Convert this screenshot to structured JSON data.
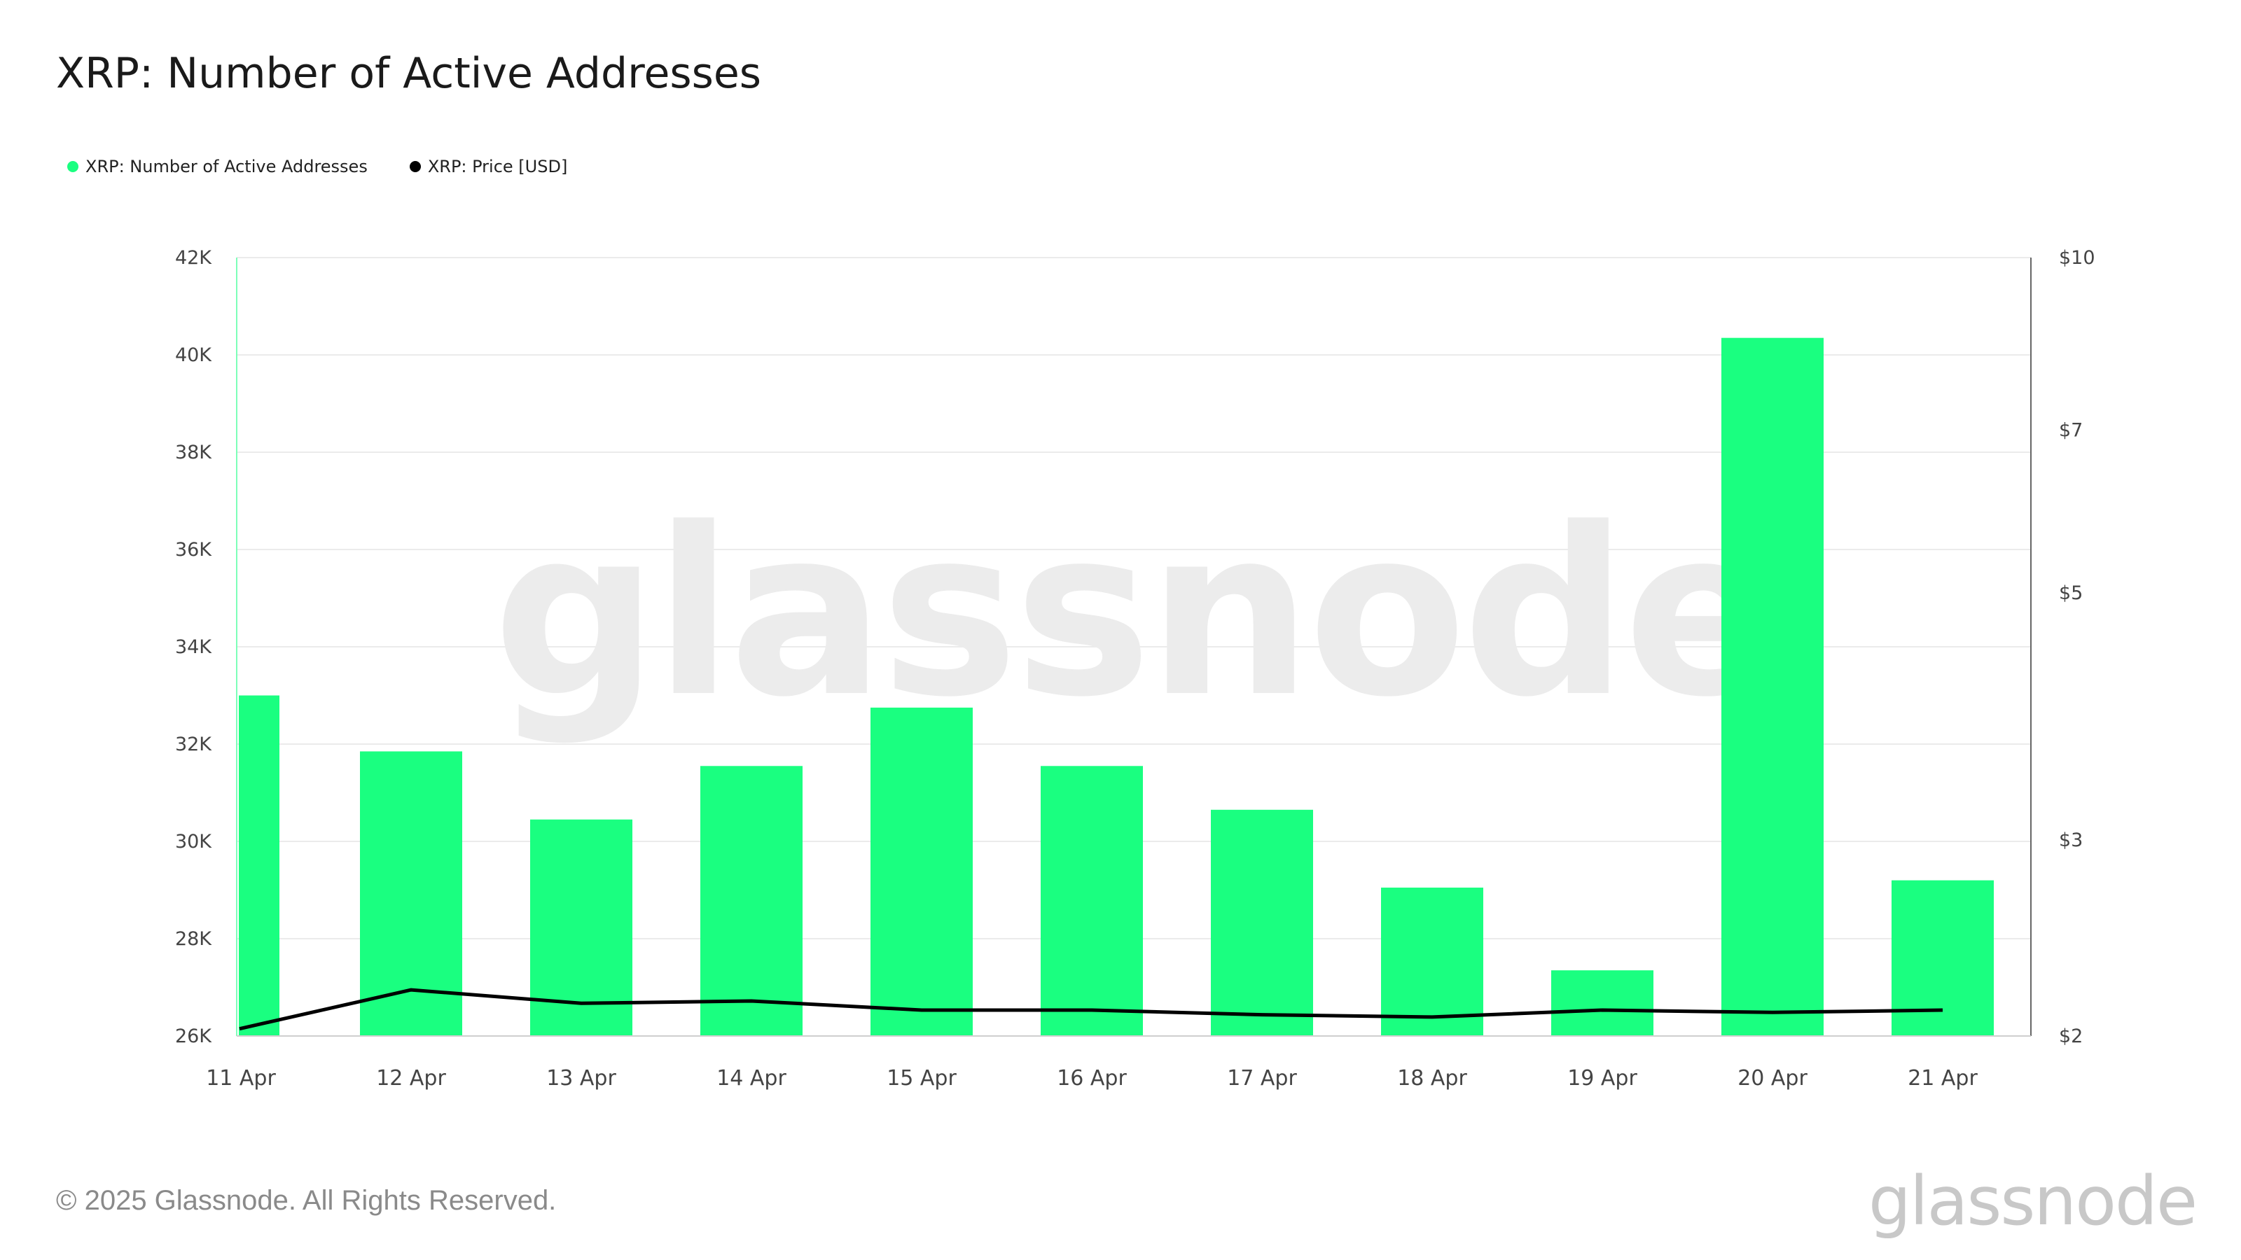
{
  "title": "XRP: Number of Active Addresses",
  "legend": [
    {
      "label": "XRP: Number of Active Addresses",
      "color": "#1aff80"
    },
    {
      "label": "XRP: Price [USD]",
      "color": "#000000"
    }
  ],
  "watermark": "glassnode",
  "footer": "© 2025 Glassnode. All Rights Reserved.",
  "brand": "glassnode",
  "chart_data": {
    "type": "bar",
    "title": "XRP: Number of Active Addresses",
    "categories": [
      "11 Apr",
      "12 Apr",
      "13 Apr",
      "14 Apr",
      "15 Apr",
      "16 Apr",
      "17 Apr",
      "18 Apr",
      "19 Apr",
      "20 Apr",
      "21 Apr"
    ],
    "series": [
      {
        "name": "XRP: Number of Active Addresses",
        "type": "bar",
        "axis": "left",
        "color": "#1aff80",
        "values": [
          33000,
          31850,
          30450,
          31550,
          32750,
          31550,
          30650,
          29050,
          27350,
          40350,
          29200
        ]
      },
      {
        "name": "XRP: Price [USD]",
        "type": "line",
        "axis": "right",
        "color": "#000000",
        "values": [
          2.03,
          2.2,
          2.14,
          2.15,
          2.11,
          2.11,
          2.09,
          2.08,
          2.11,
          2.1,
          2.11
        ]
      }
    ],
    "y_left": {
      "min": 26000,
      "max": 42000,
      "ticks": [
        {
          "value": 26000,
          "label": "26K"
        },
        {
          "value": 28000,
          "label": "28K"
        },
        {
          "value": 30000,
          "label": "30K"
        },
        {
          "value": 32000,
          "label": "32K"
        },
        {
          "value": 34000,
          "label": "34K"
        },
        {
          "value": 36000,
          "label": "36K"
        },
        {
          "value": 38000,
          "label": "38K"
        },
        {
          "value": 40000,
          "label": "40K"
        },
        {
          "value": 42000,
          "label": "42K"
        }
      ]
    },
    "y_right": {
      "scale": "log",
      "min": 2,
      "max": 10,
      "ticks": [
        {
          "value": 2,
          "label": "$2"
        },
        {
          "value": 3,
          "label": "$3"
        },
        {
          "value": 5,
          "label": "$5"
        },
        {
          "value": 7,
          "label": "$7"
        },
        {
          "value": 10,
          "label": "$10"
        }
      ]
    },
    "grid": true,
    "legend_position": "top-left"
  }
}
